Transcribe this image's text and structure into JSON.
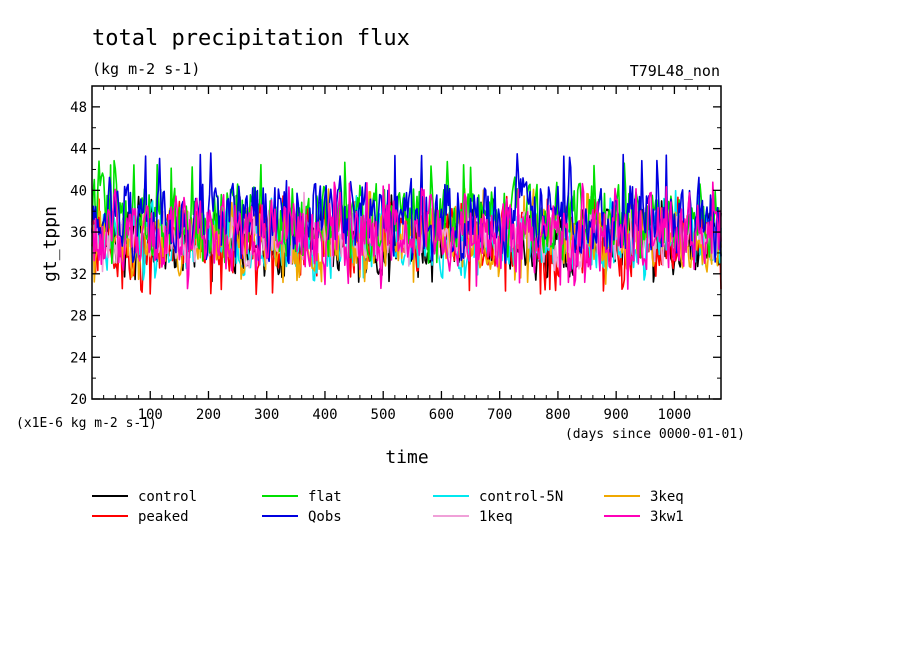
{
  "chart_data": {
    "type": "line",
    "title": "total precipitation flux",
    "subtitle": "(kg m-2 s-1)",
    "run_label": "T79L48_non",
    "xlabel": "time",
    "x_units": "(days since 0000-01-01)",
    "ylabel": "gt_tppn",
    "y_scale_note": "(x1E-6 kg m-2 s-1)",
    "xlim": [
      0,
      1080
    ],
    "ylim": [
      20,
      50
    ],
    "x_ticks": [
      "100",
      "200",
      "300",
      "400",
      "500",
      "600",
      "700",
      "800",
      "900",
      "1000"
    ],
    "y_ticks": [
      "20",
      "24",
      "28",
      "32",
      "36",
      "40",
      "44",
      "48"
    ],
    "grid": false,
    "legend_position": "bottom",
    "series": [
      {
        "name": "control",
        "color": "#000000",
        "mean": 35.2,
        "low": 31.2,
        "high": 39.6
      },
      {
        "name": "flat",
        "color": "#00e000",
        "mean": 37.4,
        "low": 33.0,
        "high": 42.9
      },
      {
        "name": "control-5N",
        "color": "#00e8f0",
        "mean": 35.4,
        "low": 31.2,
        "high": 40.0
      },
      {
        "name": "3keq",
        "color": "#f0a800",
        "mean": 35.6,
        "low": 31.0,
        "high": 40.2
      },
      {
        "name": "peaked",
        "color": "#ff0000",
        "mean": 35.0,
        "low": 30.0,
        "high": 39.5
      },
      {
        "name": "Qobs",
        "color": "#0000e0",
        "mean": 37.6,
        "low": 33.0,
        "high": 43.6
      },
      {
        "name": "1keq",
        "color": "#f0a0d8",
        "mean": 35.6,
        "low": 32.0,
        "high": 39.8
      },
      {
        "name": "3kw1",
        "color": "#ff00b8",
        "mean": 35.8,
        "low": 30.5,
        "high": 40.8
      }
    ]
  }
}
